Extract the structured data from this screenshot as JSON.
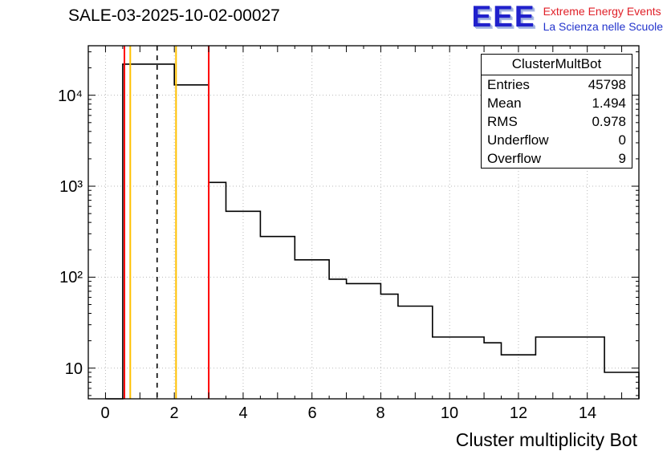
{
  "header": {
    "title": "SALE-03-2025-10-02-00027",
    "logo": {
      "acronym": "EEE",
      "line1": "Extreme Energy Events",
      "line2": "La Scienza nelle Scuole",
      "acronym_color": "#2020cc",
      "line1_color": "#e02028",
      "line2_color": "#2233cc"
    }
  },
  "stats_box": {
    "title": "ClusterMultBot",
    "rows": [
      {
        "label": "Entries",
        "value": "45798"
      },
      {
        "label": "Mean",
        "value": "1.494"
      },
      {
        "label": "RMS",
        "value": "0.978"
      },
      {
        "label": "Underflow",
        "value": "0"
      },
      {
        "label": "Overflow",
        "value": "9"
      }
    ]
  },
  "chart_data": {
    "type": "bar",
    "title": "SALE-03-2025-10-02-00027",
    "xlabel": "Cluster multiplicity Bot",
    "ylabel": "",
    "yscale": "log",
    "grid": true,
    "xlim": [
      -0.5,
      15.5
    ],
    "ylim": [
      4.6,
      35000
    ],
    "x_start": 0,
    "bin_width": 0.5,
    "counts": [
      0,
      22000,
      22000,
      22000,
      13000,
      13000,
      1100,
      530,
      530,
      280,
      280,
      155,
      155,
      95,
      85,
      85,
      65,
      48,
      48,
      22,
      22,
      22,
      19,
      14,
      14,
      22,
      22,
      22,
      22,
      9,
      9
    ],
    "x_major_ticks": [
      0,
      2,
      4,
      6,
      8,
      10,
      12,
      14
    ],
    "x_tick_labels": [
      "0",
      "2",
      "4",
      "6",
      "8",
      "10",
      "12",
      "14"
    ],
    "y_decades": [
      10,
      100,
      1000,
      10000
    ],
    "y_tick_labels": [
      "10",
      "10²",
      "10³",
      "10⁴"
    ],
    "stats": {
      "entries": 45798,
      "mean": 1.494,
      "rms": 0.978,
      "underflow": 0,
      "overflow": 9
    },
    "marker_lines": [
      {
        "x": 0.55,
        "color": "#ff0000",
        "style": "solid"
      },
      {
        "x": 0.72,
        "color": "#ffc000",
        "style": "solid"
      },
      {
        "x": 1.5,
        "color": "#000000",
        "style": "dashed"
      },
      {
        "x": 2.05,
        "color": "#ffc000",
        "style": "solid"
      },
      {
        "x": 3.0,
        "color": "#ff0000",
        "style": "solid"
      }
    ]
  }
}
